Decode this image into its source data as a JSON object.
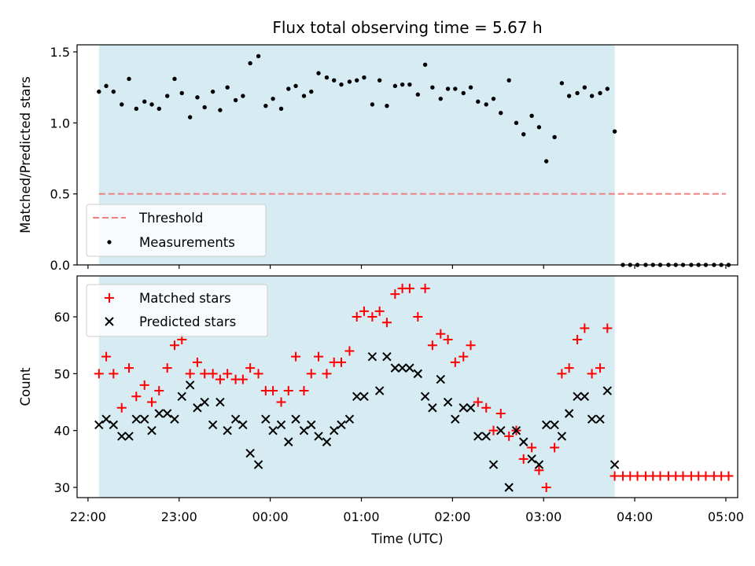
{
  "chart_data": [
    {
      "type": "scatter",
      "title": "Flux total observing time = 5.67 h",
      "ylabel": "Matched/Predicted stars",
      "xlabel": "",
      "xlim": [
        21.88,
        29.13
      ],
      "ylim": [
        0,
        1.55
      ],
      "yticks": [
        0.0,
        0.5,
        1.0,
        1.5
      ],
      "ytick_labels": [
        "0.0",
        "0.5",
        "1.0",
        "1.5"
      ],
      "shaded_span": [
        22.12,
        27.78
      ],
      "shade_color": "#add8e6",
      "threshold": {
        "name": "Threshold",
        "y": 0.5,
        "x": [
          22.12,
          29.0
        ],
        "color": "#f08080"
      },
      "series": [
        {
          "name": "Measurements",
          "color": "#000000",
          "x": [
            22.12,
            22.2,
            22.28,
            22.37,
            22.45,
            22.53,
            22.62,
            22.7,
            22.78,
            22.87,
            22.95,
            23.03,
            23.12,
            23.2,
            23.28,
            23.37,
            23.45,
            23.53,
            23.62,
            23.7,
            23.78,
            23.87,
            23.95,
            24.03,
            24.12,
            24.2,
            24.28,
            24.37,
            24.45,
            24.53,
            24.62,
            24.7,
            24.78,
            24.87,
            24.95,
            25.03,
            25.12,
            25.2,
            25.28,
            25.37,
            25.45,
            25.53,
            25.62,
            25.7,
            25.78,
            25.87,
            25.95,
            26.03,
            26.12,
            26.2,
            26.28,
            26.37,
            26.45,
            26.53,
            26.62,
            26.7,
            26.78,
            26.87,
            26.95,
            27.03,
            27.12,
            27.2,
            27.28,
            27.37,
            27.45,
            27.53,
            27.62,
            27.7,
            27.78,
            27.87,
            27.95,
            28.03,
            28.12,
            28.2,
            28.28,
            28.37,
            28.45,
            28.53,
            28.62,
            28.7,
            28.78,
            28.87,
            28.95,
            29.03
          ],
          "y": [
            1.22,
            1.26,
            1.22,
            1.13,
            1.31,
            1.1,
            1.15,
            1.13,
            1.1,
            1.19,
            1.31,
            1.21,
            1.04,
            1.18,
            1.11,
            1.22,
            1.09,
            1.25,
            1.16,
            1.19,
            1.42,
            1.47,
            1.12,
            1.17,
            1.1,
            1.24,
            1.26,
            1.19,
            1.22,
            1.35,
            1.32,
            1.3,
            1.27,
            1.29,
            1.3,
            1.32,
            1.13,
            1.3,
            1.12,
            1.26,
            1.27,
            1.27,
            1.2,
            1.41,
            1.25,
            1.17,
            1.24,
            1.24,
            1.21,
            1.25,
            1.15,
            1.13,
            1.17,
            1.07,
            1.3,
            1.0,
            0.92,
            1.05,
            0.97,
            0.73,
            0.9,
            1.28,
            1.19,
            1.21,
            1.25,
            1.19,
            1.21,
            1.24,
            0.94,
            0.0,
            0.0,
            0.0,
            0.0,
            0.0,
            0.0,
            0.0,
            0.0,
            0.0,
            0.0,
            0.0,
            0.0,
            0.0,
            0.0,
            0.0
          ]
        }
      ],
      "legend": {
        "position": "lower-left",
        "entries": [
          "Threshold",
          "Measurements"
        ]
      }
    },
    {
      "type": "scatter",
      "title": "",
      "xlabel": "Time (UTC)",
      "ylabel": "Count",
      "xlim": [
        21.88,
        29.13
      ],
      "ylim": [
        28.2,
        67.2
      ],
      "yticks": [
        30,
        40,
        50,
        60
      ],
      "ytick_labels": [
        "30",
        "40",
        "50",
        "60"
      ],
      "xticks": [
        22,
        23,
        24,
        25,
        26,
        27,
        28,
        29
      ],
      "xtick_labels": [
        "22:00",
        "23:00",
        "00:00",
        "01:00",
        "02:00",
        "03:00",
        "04:00",
        "05:00"
      ],
      "shaded_span": [
        22.12,
        27.78
      ],
      "shade_color": "#add8e6",
      "series": [
        {
          "name": "Matched stars",
          "marker": "plus",
          "color": "#ff0000",
          "x": [
            22.12,
            22.2,
            22.28,
            22.37,
            22.45,
            22.53,
            22.62,
            22.7,
            22.78,
            22.87,
            22.95,
            23.03,
            23.12,
            23.2,
            23.28,
            23.37,
            23.45,
            23.53,
            23.62,
            23.7,
            23.78,
            23.87,
            23.95,
            24.03,
            24.12,
            24.2,
            24.28,
            24.37,
            24.45,
            24.53,
            24.62,
            24.7,
            24.78,
            24.87,
            24.95,
            25.03,
            25.12,
            25.2,
            25.28,
            25.37,
            25.45,
            25.53,
            25.62,
            25.7,
            25.78,
            25.87,
            25.95,
            26.03,
            26.12,
            26.2,
            26.28,
            26.37,
            26.45,
            26.53,
            26.62,
            26.7,
            26.78,
            26.87,
            26.95,
            27.03,
            27.12,
            27.2,
            27.28,
            27.37,
            27.45,
            27.53,
            27.62,
            27.7,
            27.78,
            27.87,
            27.95,
            28.03,
            28.12,
            28.2,
            28.28,
            28.37,
            28.45,
            28.53,
            28.62,
            28.7,
            28.78,
            28.87,
            28.95,
            29.03
          ],
          "y": [
            50,
            53,
            50,
            44,
            51,
            46,
            48,
            45,
            47,
            51,
            55,
            56,
            50,
            52,
            50,
            50,
            49,
            50,
            49,
            49,
            51,
            50,
            47,
            47,
            45,
            47,
            53,
            47,
            50,
            53,
            50,
            52,
            52,
            54,
            60,
            61,
            60,
            61,
            59,
            64,
            65,
            65,
            60,
            65,
            55,
            57,
            56,
            52,
            53,
            55,
            45,
            44,
            40,
            43,
            39,
            40,
            35,
            37,
            33,
            30,
            37,
            50,
            51,
            56,
            58,
            50,
            51,
            58,
            32,
            32,
            32,
            32,
            32,
            32,
            32,
            32,
            32,
            32,
            32,
            32,
            32,
            32,
            32,
            32
          ]
        },
        {
          "name": "Predicted stars",
          "marker": "x",
          "color": "#000000",
          "x": [
            22.12,
            22.2,
            22.28,
            22.37,
            22.45,
            22.53,
            22.62,
            22.7,
            22.78,
            22.87,
            22.95,
            23.03,
            23.12,
            23.2,
            23.28,
            23.37,
            23.45,
            23.53,
            23.62,
            23.7,
            23.78,
            23.87,
            23.95,
            24.03,
            24.12,
            24.2,
            24.28,
            24.37,
            24.45,
            24.53,
            24.62,
            24.7,
            24.78,
            24.87,
            24.95,
            25.03,
            25.12,
            25.2,
            25.28,
            25.37,
            25.45,
            25.53,
            25.62,
            25.7,
            25.78,
            25.87,
            25.95,
            26.03,
            26.12,
            26.2,
            26.28,
            26.37,
            26.45,
            26.53,
            26.62,
            26.7,
            26.78,
            26.87,
            26.95,
            27.03,
            27.12,
            27.2,
            27.28,
            27.37,
            27.45,
            27.53,
            27.62,
            27.7,
            27.78
          ],
          "y": [
            41,
            42,
            41,
            39,
            39,
            42,
            42,
            40,
            43,
            43,
            42,
            46,
            48,
            44,
            45,
            41,
            45,
            40,
            42,
            41,
            36,
            34,
            42,
            40,
            41,
            38,
            42,
            40,
            41,
            39,
            38,
            40,
            41,
            42,
            46,
            46,
            53,
            47,
            53,
            51,
            51,
            51,
            50,
            46,
            44,
            49,
            45,
            42,
            44,
            44,
            39,
            39,
            34,
            40,
            30,
            40,
            38,
            35,
            34,
            41,
            41,
            39,
            43,
            46,
            46,
            42,
            42,
            47,
            34
          ]
        }
      ],
      "legend": {
        "position": "upper-left",
        "entries": [
          "Matched stars",
          "Predicted stars"
        ]
      }
    }
  ]
}
